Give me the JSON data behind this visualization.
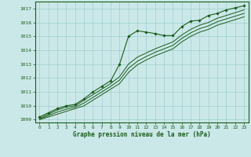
{
  "title": "Graphe pression niveau de la mer (hPa)",
  "background_color": "#cbe8e8",
  "plot_bg_color": "#cbe8e8",
  "grid_color": "#9ecece",
  "line_color": "#1a5c1a",
  "marker_color": "#1a5c1a",
  "xlim": [
    -0.5,
    23.5
  ],
  "ylim": [
    1008.8,
    1017.5
  ],
  "yticks": [
    1009,
    1010,
    1011,
    1012,
    1013,
    1014,
    1015,
    1016,
    1017
  ],
  "xticks": [
    0,
    1,
    2,
    3,
    4,
    5,
    6,
    7,
    8,
    9,
    10,
    11,
    12,
    13,
    14,
    15,
    16,
    17,
    18,
    19,
    20,
    21,
    22,
    23
  ],
  "series_marked": [
    1009.2,
    1009.5,
    1009.8,
    1010.0,
    1010.1,
    1010.5,
    1011.0,
    1011.4,
    1011.8,
    1013.0,
    1015.0,
    1015.4,
    1015.3,
    1015.2,
    1015.05,
    1015.05,
    1015.7,
    1016.1,
    1016.15,
    1016.5,
    1016.65,
    1016.9,
    1017.05,
    1017.2
  ],
  "series2": [
    1009.1,
    1009.4,
    1009.7,
    1009.9,
    1010.0,
    1010.4,
    1010.8,
    1011.2,
    1011.6,
    1012.1,
    1013.0,
    1013.5,
    1013.8,
    1014.1,
    1014.35,
    1014.6,
    1015.1,
    1015.5,
    1015.8,
    1016.0,
    1016.3,
    1016.5,
    1016.7,
    1016.9
  ],
  "series3": [
    1009.05,
    1009.3,
    1009.55,
    1009.75,
    1009.9,
    1010.2,
    1010.6,
    1011.0,
    1011.4,
    1011.85,
    1012.7,
    1013.2,
    1013.55,
    1013.85,
    1014.1,
    1014.35,
    1014.85,
    1015.25,
    1015.55,
    1015.75,
    1016.05,
    1016.25,
    1016.45,
    1016.65
  ],
  "series4": [
    1009.0,
    1009.2,
    1009.4,
    1009.6,
    1009.8,
    1010.0,
    1010.4,
    1010.8,
    1011.2,
    1011.6,
    1012.4,
    1012.95,
    1013.3,
    1013.6,
    1013.85,
    1014.1,
    1014.6,
    1015.0,
    1015.3,
    1015.5,
    1015.8,
    1016.0,
    1016.2,
    1016.4
  ]
}
